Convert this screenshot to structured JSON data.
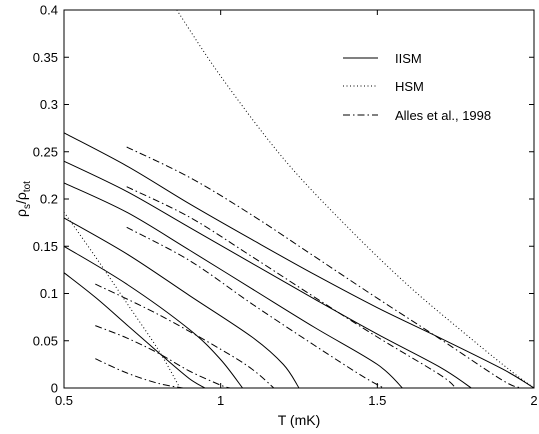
{
  "chart_data": {
    "type": "line",
    "title": "",
    "xlabel": "T (mK)",
    "ylabel": {
      "main": "ρ",
      "sub1": "s",
      "slash": "/ρ",
      "sub2": "tot"
    },
    "xlim": [
      0.5,
      2.0
    ],
    "ylim": [
      0,
      0.4
    ],
    "xticks": [
      "0.5",
      "1",
      "1.5",
      "2"
    ],
    "xtick_values": [
      0.5,
      1,
      1.5,
      2
    ],
    "yticks": [
      "0",
      "0.05",
      "0.1",
      "0.15",
      "0.2",
      "0.25",
      "0.3",
      "0.35",
      "0.4"
    ],
    "ytick_values": [
      0,
      0.05,
      0.1,
      0.15,
      0.2,
      0.25,
      0.3,
      0.35,
      0.4
    ],
    "grid": false,
    "legend_position": "top-right",
    "colors": {
      "line": "#000000",
      "background": "#ffffff"
    },
    "legend": [
      {
        "label": "IISM",
        "style": "solid"
      },
      {
        "label": "HSM",
        "style": "dotted"
      },
      {
        "label": "Alles et al., 1998",
        "style": "dashdot"
      }
    ],
    "series": [
      {
        "group": "IISM",
        "style": "solid",
        "points": [
          [
            0.5,
            0.27
          ],
          [
            0.7,
            0.235
          ],
          [
            0.9,
            0.195
          ],
          [
            1.1,
            0.157
          ],
          [
            1.3,
            0.12
          ],
          [
            1.5,
            0.085
          ],
          [
            1.7,
            0.053
          ],
          [
            1.9,
            0.02
          ],
          [
            2.0,
            0.0
          ]
        ]
      },
      {
        "group": "IISM",
        "style": "solid",
        "points": [
          [
            0.5,
            0.24
          ],
          [
            0.7,
            0.208
          ],
          [
            0.9,
            0.17
          ],
          [
            1.1,
            0.132
          ],
          [
            1.3,
            0.094
          ],
          [
            1.5,
            0.057
          ],
          [
            1.7,
            0.022
          ],
          [
            1.8,
            0.0
          ]
        ]
      },
      {
        "group": "IISM",
        "style": "solid",
        "points": [
          [
            0.5,
            0.217
          ],
          [
            0.7,
            0.186
          ],
          [
            0.9,
            0.146
          ],
          [
            1.1,
            0.105
          ],
          [
            1.3,
            0.064
          ],
          [
            1.5,
            0.025
          ],
          [
            1.58,
            0.0
          ]
        ]
      },
      {
        "group": "IISM",
        "style": "solid",
        "points": [
          [
            0.5,
            0.18
          ],
          [
            0.7,
            0.142
          ],
          [
            0.9,
            0.098
          ],
          [
            1.1,
            0.054
          ],
          [
            1.2,
            0.025
          ],
          [
            1.25,
            0.0
          ]
        ]
      },
      {
        "group": "IISM",
        "style": "solid",
        "points": [
          [
            0.5,
            0.15
          ],
          [
            0.7,
            0.11
          ],
          [
            0.9,
            0.062
          ],
          [
            1.0,
            0.03
          ],
          [
            1.07,
            0.0
          ]
        ]
      },
      {
        "group": "IISM",
        "style": "solid",
        "points": [
          [
            0.5,
            0.122
          ],
          [
            0.6,
            0.096
          ],
          [
            0.7,
            0.067
          ],
          [
            0.8,
            0.038
          ],
          [
            0.9,
            0.01
          ],
          [
            0.95,
            0.0
          ]
        ]
      },
      {
        "group": "HSM",
        "style": "dotted",
        "points": [
          [
            0.86,
            0.4
          ],
          [
            1.0,
            0.33
          ],
          [
            1.2,
            0.243
          ],
          [
            1.4,
            0.172
          ],
          [
            1.6,
            0.108
          ],
          [
            1.8,
            0.052
          ],
          [
            1.93,
            0.017
          ],
          [
            2.0,
            0.0
          ]
        ]
      },
      {
        "group": "HSM",
        "style": "dotted",
        "points": [
          [
            0.5,
            0.186
          ],
          [
            0.6,
            0.139
          ],
          [
            0.7,
            0.09
          ],
          [
            0.8,
            0.041
          ],
          [
            0.87,
            0.0
          ]
        ]
      },
      {
        "group": "Alles et al., 1998",
        "style": "dashdot",
        "points": [
          [
            0.7,
            0.255
          ],
          [
            0.9,
            0.223
          ],
          [
            1.1,
            0.183
          ],
          [
            1.3,
            0.139
          ],
          [
            1.5,
            0.095
          ],
          [
            1.7,
            0.052
          ],
          [
            1.9,
            0.008
          ],
          [
            1.96,
            0.0
          ]
        ]
      },
      {
        "group": "Alles et al., 1998",
        "style": "dashdot",
        "points": [
          [
            0.7,
            0.213
          ],
          [
            0.9,
            0.181
          ],
          [
            1.1,
            0.139
          ],
          [
            1.3,
            0.096
          ],
          [
            1.5,
            0.054
          ],
          [
            1.7,
            0.014
          ],
          [
            1.75,
            0.0
          ]
        ]
      },
      {
        "group": "Alles et al., 1998",
        "style": "dashdot",
        "points": [
          [
            0.7,
            0.17
          ],
          [
            0.9,
            0.135
          ],
          [
            1.1,
            0.089
          ],
          [
            1.3,
            0.045
          ],
          [
            1.45,
            0.013
          ],
          [
            1.52,
            0.0
          ]
        ]
      },
      {
        "group": "Alles et al., 1998",
        "style": "dashdot",
        "points": [
          [
            0.6,
            0.11
          ],
          [
            0.8,
            0.078
          ],
          [
            1.0,
            0.041
          ],
          [
            1.1,
            0.02
          ],
          [
            1.17,
            0.0
          ]
        ]
      },
      {
        "group": "Alles et al., 1998",
        "style": "dashdot",
        "points": [
          [
            0.6,
            0.066
          ],
          [
            0.7,
            0.053
          ],
          [
            0.8,
            0.037
          ],
          [
            0.9,
            0.018
          ],
          [
            1.0,
            0.003
          ],
          [
            1.03,
            0.0
          ]
        ]
      },
      {
        "group": "Alles et al., 1998",
        "style": "dashdot",
        "points": [
          [
            0.6,
            0.031
          ],
          [
            0.7,
            0.016
          ],
          [
            0.8,
            0.005
          ],
          [
            0.88,
            0.0
          ]
        ]
      }
    ]
  }
}
